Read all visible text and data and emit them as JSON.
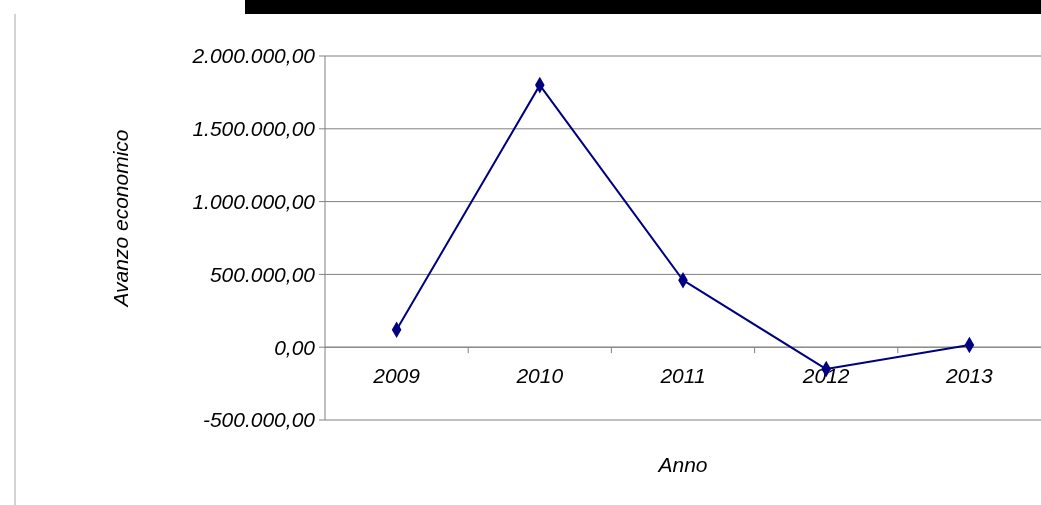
{
  "chart_data": {
    "type": "line",
    "xlabel": "Anno",
    "ylabel": "Avanzo economico",
    "categories": [
      "2009",
      "2010",
      "2011",
      "2012",
      "2013"
    ],
    "series": [
      {
        "color": "#000080",
        "values": [
          120000,
          1800000,
          460000,
          -150000,
          15000
        ]
      }
    ],
    "marker": "diamond",
    "ylim": [
      -500000,
      2000000
    ],
    "yticks": [
      {
        "value": -500000,
        "label": "-500.000,00"
      },
      {
        "value": 0,
        "label": "0,00"
      },
      {
        "value": 500000,
        "label": "500.000,00"
      },
      {
        "value": 1000000,
        "label": "1.000.000,00"
      },
      {
        "value": 1500000,
        "label": "1.500.000,00"
      },
      {
        "value": 2000000,
        "label": "2.000.000,00"
      }
    ],
    "grid": "y"
  }
}
